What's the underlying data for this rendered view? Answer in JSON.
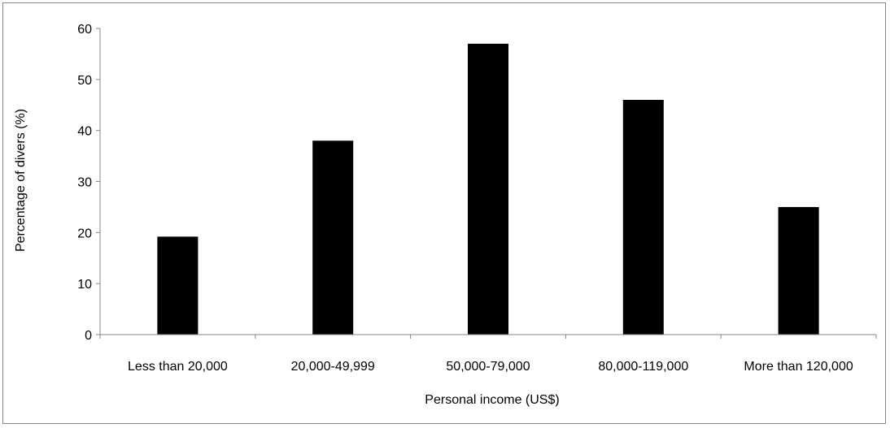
{
  "chart_data": {
    "type": "bar",
    "categories": [
      "Less than 20,000",
      "20,000-49,999",
      "50,000-79,000",
      "80,000-119,000",
      "More than 120,000"
    ],
    "values": [
      19.2,
      38,
      57,
      46,
      25
    ],
    "xlabel": "Personal income (US$)",
    "ylabel": "Percentage of divers (%)",
    "ylim": [
      0,
      60
    ],
    "yticks": [
      0,
      10,
      20,
      30,
      40,
      50,
      60
    ],
    "bar_color": "#000000",
    "grid": false
  }
}
